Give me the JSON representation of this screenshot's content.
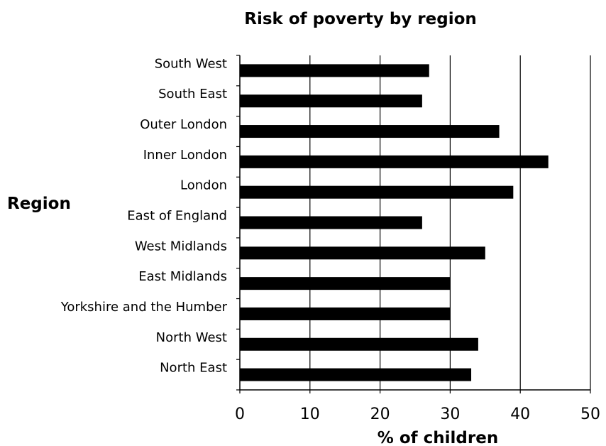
{
  "chart_data": {
    "type": "bar",
    "orientation": "horizontal",
    "title": "Risk of poverty by region",
    "xlabel": "% of children",
    "ylabel": "Region",
    "categories": [
      "South West",
      "South East",
      "Outer London",
      "Inner London",
      "London",
      "East of England",
      "West Midlands",
      "East Midlands",
      "Yorkshire and the Humber",
      "North West",
      "North East"
    ],
    "values": [
      27,
      26,
      37,
      44,
      39,
      26,
      35,
      30,
      30,
      34,
      33
    ],
    "xlim": [
      0,
      50
    ],
    "xticks": [
      0,
      10,
      20,
      30,
      40,
      50
    ],
    "grid": "vertical",
    "bar_color": "#000000",
    "legend": "none"
  }
}
